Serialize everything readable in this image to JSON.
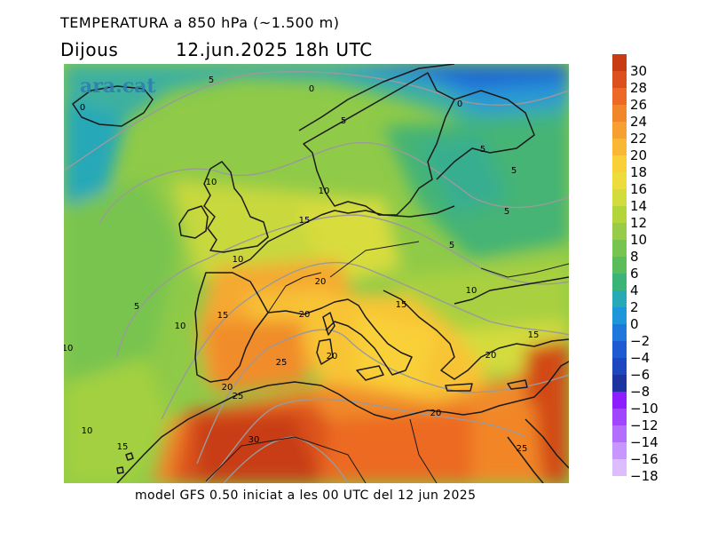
{
  "header": {
    "title": "TEMPERATURA a 850 hPa (~1.500 m)",
    "day": "Dijous",
    "datetime": "12.jun.2025 18h UTC"
  },
  "brand": {
    "logo_text": "ara.cat"
  },
  "footer": {
    "model_info": "model GFS 0.50 iniciat a les 00 UTC del 12 jun 2025"
  },
  "legend": {
    "items": [
      {
        "label": "30",
        "color": "#c83c14"
      },
      {
        "label": "28",
        "color": "#dc501e"
      },
      {
        "label": "26",
        "color": "#ec6a24"
      },
      {
        "label": "24",
        "color": "#f2862a"
      },
      {
        "label": "22",
        "color": "#f5a030"
      },
      {
        "label": "20",
        "color": "#f8b834"
      },
      {
        "label": "18",
        "color": "#f9d038"
      },
      {
        "label": "16",
        "color": "#ecdc3c"
      },
      {
        "label": "14",
        "color": "#d2dc3c"
      },
      {
        "label": "12",
        "color": "#b4d43c"
      },
      {
        "label": "10",
        "color": "#96cc46"
      },
      {
        "label": "8",
        "color": "#78c450"
      },
      {
        "label": "6",
        "color": "#5abc5a"
      },
      {
        "label": "4",
        "color": "#3cb478"
      },
      {
        "label": "2",
        "color": "#28aab4"
      },
      {
        "label": "0",
        "color": "#1e96dc"
      },
      {
        "label": "−2",
        "color": "#1e78dc"
      },
      {
        "label": "−4",
        "color": "#1e5ad2"
      },
      {
        "label": "−6",
        "color": "#1e46be"
      },
      {
        "label": "−8",
        "color": "#1e32a0"
      },
      {
        "label": "−10",
        "color": "#8c1eff"
      },
      {
        "label": "−12",
        "color": "#a046ff"
      },
      {
        "label": "−14",
        "color": "#b46eff"
      },
      {
        "label": "−16",
        "color": "#c896ff"
      },
      {
        "label": "−18",
        "color": "#dcbeff"
      }
    ]
  },
  "contour_labels": [
    {
      "text": "5"
    },
    {
      "text": "0"
    },
    {
      "text": "0"
    },
    {
      "text": "5"
    },
    {
      "text": "0"
    },
    {
      "text": "5"
    },
    {
      "text": "5"
    },
    {
      "text": "10"
    },
    {
      "text": "10"
    },
    {
      "text": "5"
    },
    {
      "text": "15"
    },
    {
      "text": "5"
    },
    {
      "text": "10"
    },
    {
      "text": "20"
    },
    {
      "text": "10"
    },
    {
      "text": "5"
    },
    {
      "text": "15"
    },
    {
      "text": "20"
    },
    {
      "text": "15"
    },
    {
      "text": "10"
    },
    {
      "text": "10"
    },
    {
      "text": "15"
    },
    {
      "text": "20"
    },
    {
      "text": "25"
    },
    {
      "text": "20"
    },
    {
      "text": "20"
    },
    {
      "text": "25"
    },
    {
      "text": "20"
    },
    {
      "text": "10"
    },
    {
      "text": "30"
    },
    {
      "text": "15"
    },
    {
      "text": "25"
    }
  ]
}
